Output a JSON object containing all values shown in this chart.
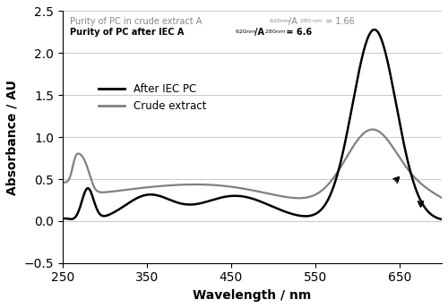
{
  "xlabel": "Wavelength / nm",
  "ylabel": "Absorbance / AU",
  "xlim": [
    250,
    700
  ],
  "ylim": [
    -0.5,
    2.5
  ],
  "xticks": [
    250,
    350,
    450,
    550,
    650
  ],
  "yticks": [
    -0.5,
    0,
    0.5,
    1.0,
    1.5,
    2.0,
    2.5
  ],
  "legend_iec": "After IEC PC",
  "legend_crude": "Crude extract",
  "color_iec": "#000000",
  "color_crude": "#808080",
  "background_color": "#ffffff",
  "grid_color": "#cccccc",
  "crude_text_color": "#888888",
  "iec_text_color": "#000000"
}
